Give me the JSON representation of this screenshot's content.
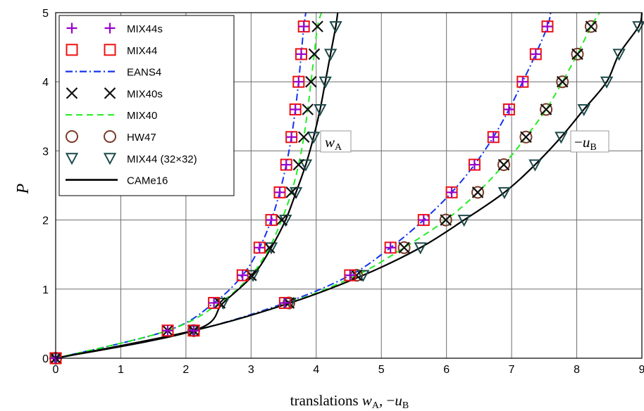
{
  "chart_data": {
    "type": "line",
    "xlabel": {
      "prefix": "translations ",
      "w": "w",
      "wsub": "A",
      "sep": ", ",
      "minus": "−",
      "u": "u",
      "usub": "B"
    },
    "ylabel": "P",
    "xlim": [
      0,
      9
    ],
    "ylim": [
      0,
      5
    ],
    "xticks": [
      "0",
      "1",
      "2",
      "3",
      "4",
      "5",
      "6",
      "7",
      "8",
      "9"
    ],
    "yticks": [
      "0",
      "1",
      "2",
      "3",
      "4",
      "5"
    ],
    "grid": true,
    "legend_position": "top-left",
    "annotations": {
      "wA": {
        "w": "w",
        "sub": "A"
      },
      "uB": {
        "minus": "−",
        "u": "u",
        "sub": "B"
      }
    },
    "P_levels": [
      0,
      0.4,
      0.8,
      1.2,
      1.6,
      2.0,
      2.4,
      2.8,
      3.2,
      3.6,
      4.0,
      4.4,
      4.8
    ],
    "series": [
      {
        "name": "MIX44s",
        "marker": "plus",
        "color": "#9900cc",
        "wA": [
          0,
          1.72,
          2.43,
          2.87,
          3.13,
          3.31,
          3.44,
          3.54,
          3.62,
          3.68,
          3.73,
          3.77,
          3.81
        ],
        "uB": [
          0,
          2.12,
          3.52,
          4.52,
          5.14,
          5.65,
          6.08,
          6.43,
          6.72,
          6.96,
          7.17,
          7.37,
          7.55
        ]
      },
      {
        "name": "MIX44",
        "marker": "square",
        "color": "#ee1111",
        "wA": [
          0,
          1.72,
          2.43,
          2.87,
          3.13,
          3.31,
          3.44,
          3.54,
          3.62,
          3.68,
          3.73,
          3.77,
          3.81
        ],
        "uB": [
          0,
          2.12,
          3.52,
          4.52,
          5.14,
          5.65,
          6.08,
          6.43,
          6.72,
          6.96,
          7.17,
          7.37,
          7.55
        ]
      },
      {
        "name": "EANS4",
        "line": "dashdot",
        "color": "#1133ee",
        "wA": [
          0,
          1.72,
          2.43,
          2.87,
          3.13,
          3.31,
          3.44,
          3.54,
          3.62,
          3.68,
          3.73,
          3.77,
          3.81,
          3.84
        ],
        "uB": [
          0,
          2.12,
          3.52,
          4.52,
          5.14,
          5.65,
          6.08,
          6.43,
          6.72,
          6.96,
          7.17,
          7.37,
          7.55,
          7.6
        ]
      },
      {
        "name": "MIX40s",
        "marker": "x",
        "color": "#111111",
        "wA": [
          0,
          1.72,
          2.52,
          3.0,
          3.28,
          3.47,
          3.62,
          3.73,
          3.81,
          3.87,
          3.92,
          3.97,
          4.02
        ],
        "uB": [
          0,
          2.12,
          3.58,
          4.62,
          5.35,
          5.99,
          6.48,
          6.88,
          7.22,
          7.53,
          7.78,
          8.01,
          8.22
        ]
      },
      {
        "name": "MIX40",
        "line": "dash",
        "color": "#22ee22",
        "wA": [
          0,
          1.72,
          2.52,
          3.0,
          3.28,
          3.47,
          3.62,
          3.73,
          3.81,
          3.87,
          3.92,
          3.97,
          4.02,
          4.08
        ],
        "uB": [
          0,
          2.12,
          3.58,
          4.62,
          5.35,
          5.99,
          6.48,
          6.88,
          7.22,
          7.53,
          7.78,
          8.01,
          8.22,
          8.35
        ]
      },
      {
        "name": "HW47",
        "marker": "circle",
        "color": "#7a3a28",
        "wA": [],
        "uB": [
          0,
          2.12,
          3.58,
          4.62,
          5.35,
          5.99,
          6.48,
          6.88,
          7.22,
          7.53,
          7.78,
          8.01,
          8.22
        ]
      },
      {
        "name": "MIX44 (32×32)",
        "marker": "triangle",
        "color": "#1d4a4a",
        "wA": [
          0,
          2.12,
          2.57,
          3.03,
          3.31,
          3.53,
          3.69,
          3.84,
          3.96,
          4.06,
          4.14,
          4.22,
          4.3
        ],
        "uB": [
          0,
          2.12,
          3.6,
          4.72,
          5.6,
          6.27,
          6.89,
          7.36,
          7.76,
          8.11,
          8.46,
          8.65,
          8.95
        ]
      },
      {
        "name": "CAMe16",
        "line": "solid",
        "color": "#000000",
        "wA": [
          0,
          2.12,
          2.57,
          3.03,
          3.31,
          3.53,
          3.69,
          3.84,
          3.96,
          4.06,
          4.14,
          4.22,
          4.3,
          4.33
        ],
        "uB": [
          0,
          2.12,
          3.6,
          4.72,
          5.6,
          6.27,
          6.89,
          7.36,
          7.76,
          8.11,
          8.46,
          8.65,
          8.95,
          9.0
        ]
      }
    ]
  }
}
